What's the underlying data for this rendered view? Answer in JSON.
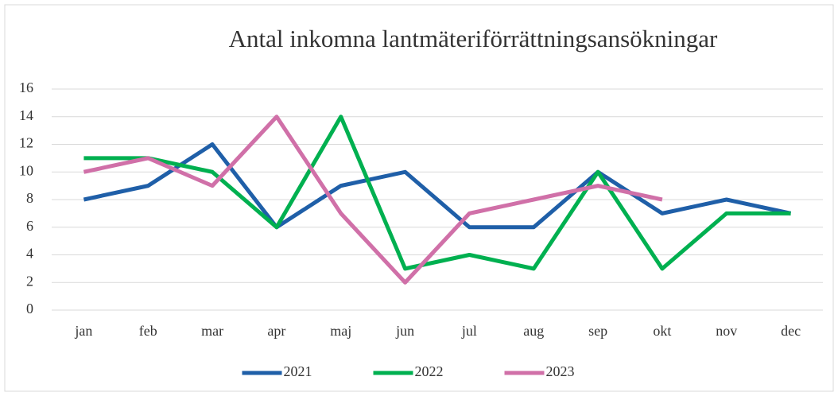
{
  "chart_data": {
    "type": "line",
    "title": "Antal inkomna lantmäteriförrättningsansökningar",
    "categories": [
      "jan",
      "feb",
      "mar",
      "apr",
      "maj",
      "jun",
      "jul",
      "aug",
      "sep",
      "okt",
      "nov",
      "dec"
    ],
    "series": [
      {
        "name": "2021",
        "color": "#1f5fa8",
        "values": [
          8,
          9,
          12,
          6,
          9,
          10,
          6,
          6,
          10,
          7,
          8,
          7
        ]
      },
      {
        "name": "2022",
        "color": "#00b050",
        "values": [
          11,
          11,
          10,
          6,
          14,
          3,
          4,
          3,
          10,
          3,
          7,
          7
        ]
      },
      {
        "name": "2023",
        "color": "#d070a8",
        "values": [
          10,
          11,
          9,
          14,
          7,
          2,
          7,
          8,
          9,
          8,
          null,
          null
        ]
      }
    ],
    "ylim": [
      0,
      16
    ],
    "yticks": [
      0,
      2,
      4,
      6,
      8,
      10,
      12,
      14,
      16
    ],
    "grid": true,
    "legend": "bottom"
  }
}
